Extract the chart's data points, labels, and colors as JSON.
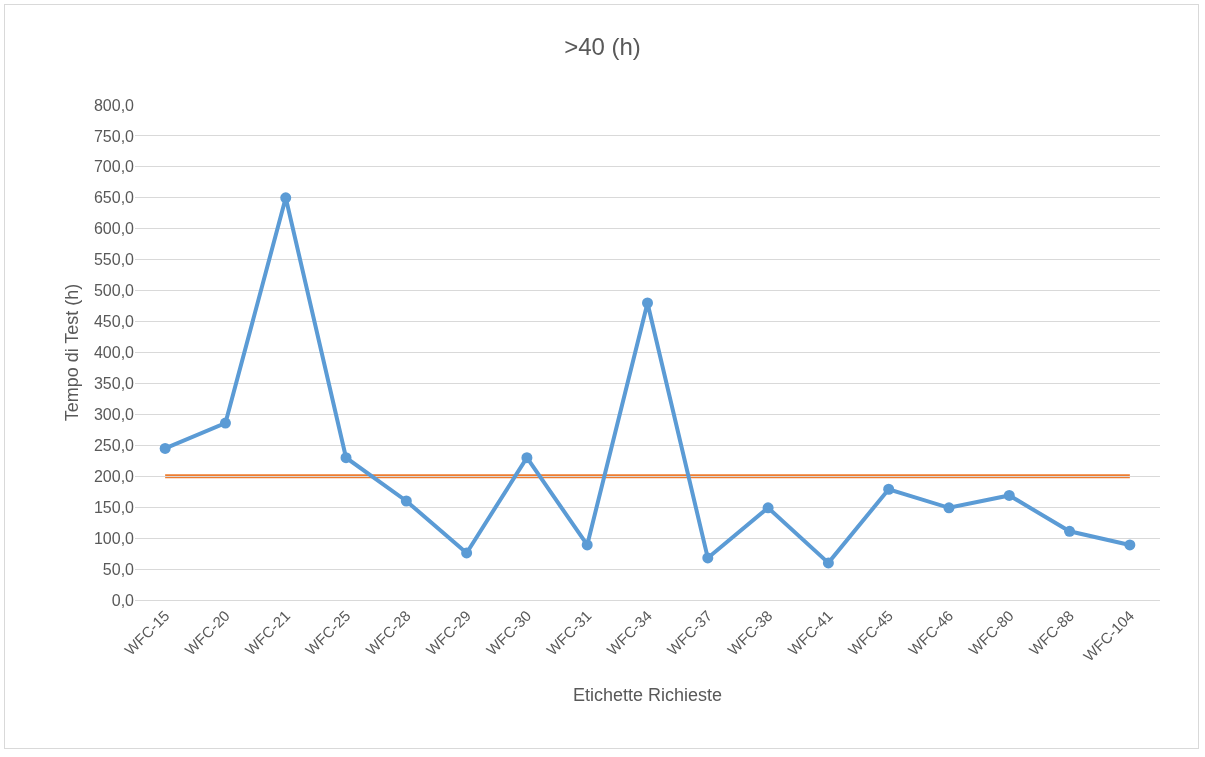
{
  "chart_data": {
    "type": "line",
    "title": ">40 (h)",
    "xlabel": "Etichette Richieste",
    "ylabel": "Tempo di Test (h)",
    "categories": [
      "WFC-15",
      "WFC-20",
      "WFC-21",
      "WFC-25",
      "WFC-28",
      "WFC-29",
      "WFC-30",
      "WFC-31",
      "WFC-34",
      "WFC-37",
      "WFC-38",
      "WFC-41",
      "WFC-45",
      "WFC-46",
      "WFC-80",
      "WFC-88",
      "WFC-104"
    ],
    "series": [
      {
        "color": "#5b9bd5",
        "values": [
          245,
          286,
          650,
          230,
          160,
          76,
          230,
          89,
          480,
          68,
          149,
          60,
          179,
          149,
          169,
          111,
          89
        ]
      }
    ],
    "ref_lines": [
      {
        "axis": "y",
        "value": 200,
        "color": "#ed7d31"
      }
    ],
    "ylim": [
      0,
      800
    ],
    "yticks": [
      {
        "value": 0,
        "label": "0,0"
      },
      {
        "value": 50,
        "label": "50,0"
      },
      {
        "value": 100,
        "label": "100,0"
      },
      {
        "value": 150,
        "label": "150,0"
      },
      {
        "value": 200,
        "label": "200,0"
      },
      {
        "value": 250,
        "label": "250,0"
      },
      {
        "value": 300,
        "label": "300,0"
      },
      {
        "value": 350,
        "label": "350,0"
      },
      {
        "value": 400,
        "label": "400,0"
      },
      {
        "value": 450,
        "label": "450,0"
      },
      {
        "value": 500,
        "label": "500,0"
      },
      {
        "value": 550,
        "label": "550,0"
      },
      {
        "value": 600,
        "label": "600,0"
      },
      {
        "value": 650,
        "label": "650,0"
      },
      {
        "value": 700,
        "label": "700,0"
      },
      {
        "value": 750,
        "label": "750,0"
      },
      {
        "value": 800,
        "label": "800,0"
      }
    ],
    "grid": "y",
    "marker": "circle",
    "line_style": "solid"
  }
}
